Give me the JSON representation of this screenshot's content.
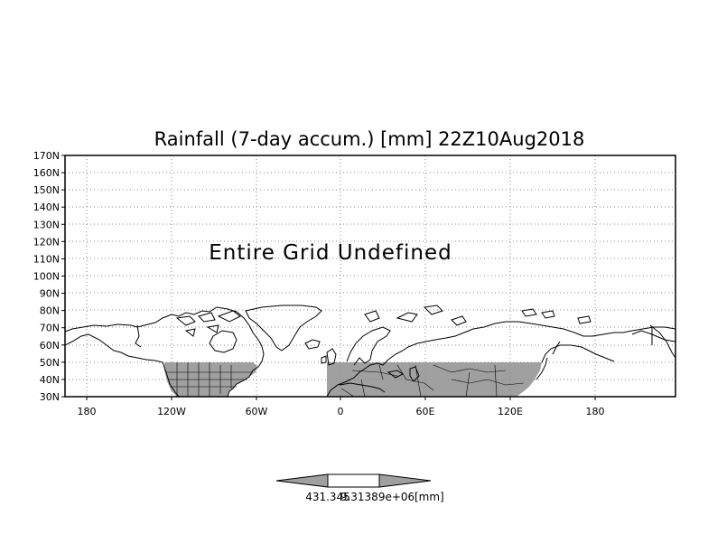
{
  "map": {
    "title": "Rainfall (7-day accum.) [mm] 22Z10Aug2018",
    "message": "Entire Grid Undefined",
    "lat_labels": [
      "170N",
      "160N",
      "150N",
      "140N",
      "130N",
      "120N",
      "110N",
      "100N",
      "90N",
      "80N",
      "70N",
      "60N",
      "50N",
      "40N",
      "30N"
    ],
    "lon_labels": [
      "180",
      "120W",
      "60W",
      "0",
      "60E",
      "120E",
      "180"
    ],
    "data_region_color": "#a0a0a0",
    "coast_color": "#000000",
    "grid_color": "#8a8a8a"
  },
  "colorbar": {
    "low_label": "431.345",
    "high_label": "9.31389e+06",
    "unit_label": "[mm]",
    "left_color": "#a0a0a0",
    "mid_color": "#ffffff",
    "right_color": "#a0a0a0"
  }
}
